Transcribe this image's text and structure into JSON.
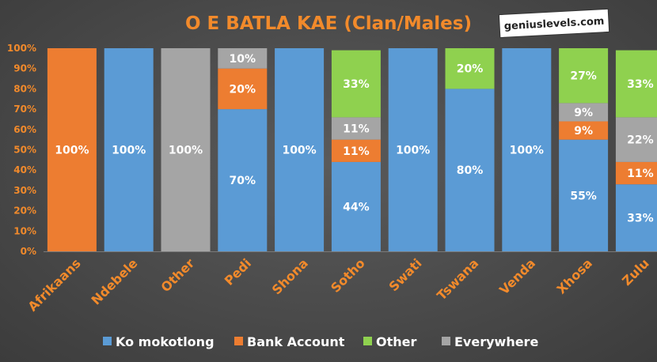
{
  "watermark": "geniuslevels.com",
  "chart_data": {
    "type": "bar",
    "stacked": true,
    "percent_stacked": true,
    "title": "O E BATLA KAE (Clan/Males)",
    "xlabel": "",
    "ylabel": "",
    "ylim": [
      0,
      100
    ],
    "y_ticks": [
      "0%",
      "10%",
      "20%",
      "30%",
      "40%",
      "50%",
      "60%",
      "70%",
      "80%",
      "90%",
      "100%"
    ],
    "grid": false,
    "legend_position": "bottom",
    "categories": [
      "Afrikaans",
      "Ndebele",
      "Other",
      "Pedi",
      "Shona",
      "Sotho",
      "Swati",
      "Tswana",
      "Venda",
      "Xhosa",
      "Zulu"
    ],
    "series": [
      {
        "name": "Ko mokotlong",
        "color": "#5b9bd5",
        "values": [
          0,
          100,
          0,
          70,
          100,
          44,
          100,
          80,
          100,
          55,
          33
        ],
        "labels": [
          "",
          "100%",
          "",
          "70%",
          "100%",
          "44%",
          "100%",
          "80%",
          "100%",
          "55%",
          "33%"
        ]
      },
      {
        "name": "Bank Account",
        "color": "#ed7d31",
        "values": [
          100,
          0,
          0,
          20,
          0,
          11,
          0,
          0,
          0,
          9,
          11
        ],
        "labels": [
          "100%",
          "",
          "",
          "20%",
          "",
          "11%",
          "",
          "",
          "",
          "9%",
          "11%"
        ]
      },
      {
        "name": "Other",
        "color": "#8fd14f",
        "values": [
          0,
          0,
          0,
          0,
          0,
          33,
          0,
          20,
          0,
          27,
          33
        ],
        "labels": [
          "",
          "",
          "",
          "",
          "",
          "33%",
          "",
          "20%",
          "",
          "27%",
          "33%"
        ]
      },
      {
        "name": "Everywhere",
        "color": "#a5a5a5",
        "values": [
          0,
          0,
          100,
          10,
          0,
          11,
          0,
          0,
          0,
          9,
          22
        ],
        "labels": [
          "",
          "",
          "100%",
          "10%",
          "",
          "11%",
          "",
          "",
          "",
          "9%",
          "22%"
        ]
      }
    ],
    "stack_order_bottom_to_top": [
      "Ko mokotlong",
      "Bank Account",
      "Everywhere",
      "Other"
    ]
  }
}
